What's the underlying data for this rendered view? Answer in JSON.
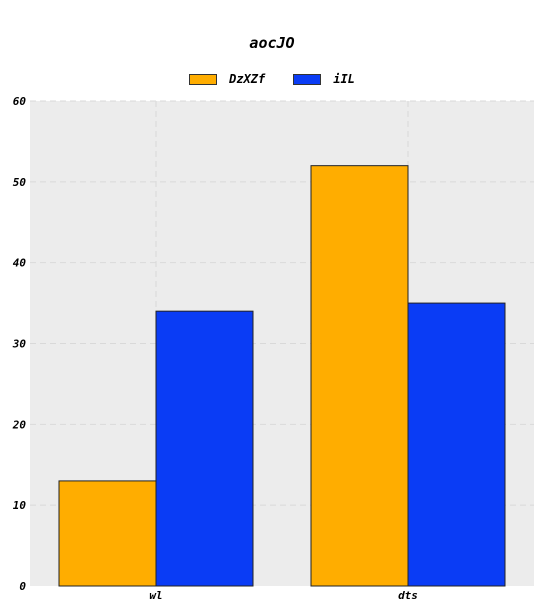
{
  "chart_data": {
    "type": "bar",
    "title": "aocJO",
    "categories": [
      "wl",
      "dts"
    ],
    "series": [
      {
        "name": "DzXZf",
        "values": [
          13,
          52
        ],
        "color": "#ffad00"
      },
      {
        "name": "iIL",
        "values": [
          34,
          35
        ],
        "color": "#0a3cf5"
      }
    ],
    "ylim": [
      0,
      60
    ],
    "yticks": [
      "0",
      "10",
      "20",
      "30",
      "40",
      "50",
      "60"
    ],
    "grid": true,
    "legend": "top-center",
    "plot_background": "#ececec"
  }
}
